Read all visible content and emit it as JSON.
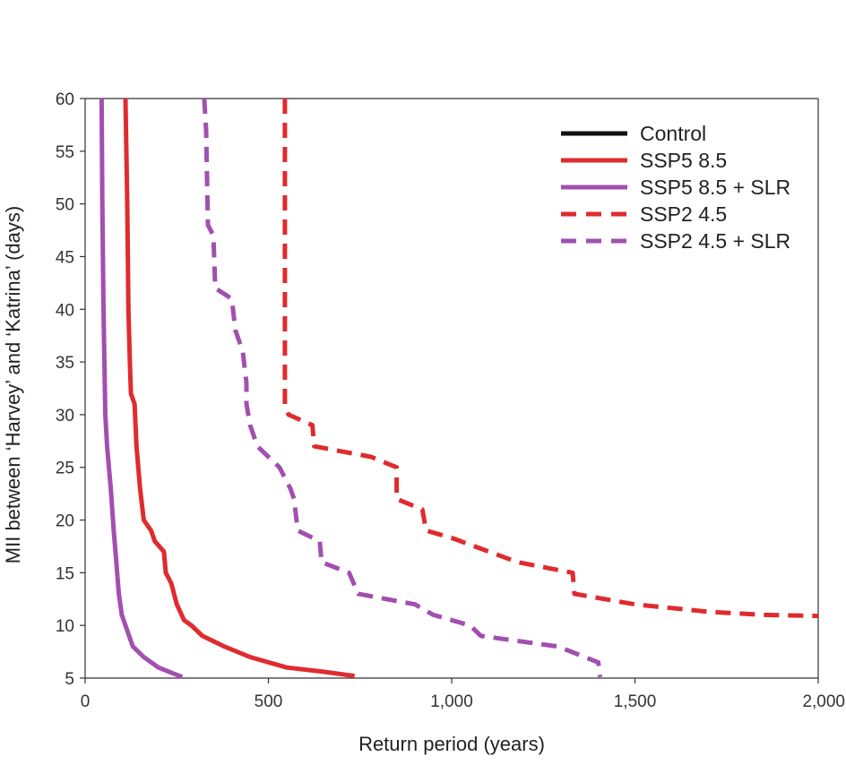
{
  "chart_data": {
    "type": "line",
    "xlabel": "Return period (years)",
    "ylabel": "MII between ‘Harvey’ and ‘Katrina’ (days)",
    "xlim": [
      0,
      2000
    ],
    "ylim": [
      5,
      60
    ],
    "xticks": [
      0,
      500,
      1000,
      1500,
      2000
    ],
    "xtick_labels": [
      "0",
      "500",
      "1,000",
      "1,500",
      "2,000"
    ],
    "yticks": [
      5,
      10,
      15,
      20,
      25,
      30,
      35,
      40,
      45,
      50,
      55,
      60
    ],
    "ytick_labels": [
      "5",
      "10",
      "15",
      "20",
      "25",
      "30",
      "35",
      "40",
      "45",
      "50",
      "55",
      "60"
    ],
    "grid": false,
    "legend_position": "top-right",
    "series": [
      {
        "name": "Control",
        "color": "#111111",
        "dash": "solid",
        "points": []
      },
      {
        "name": "SSP5 8.5",
        "color": "#e02b2e",
        "dash": "solid",
        "points": [
          [
            110,
            60
          ],
          [
            115,
            50
          ],
          [
            118,
            40
          ],
          [
            122,
            35
          ],
          [
            125,
            32
          ],
          [
            135,
            31
          ],
          [
            140,
            27
          ],
          [
            150,
            23
          ],
          [
            160,
            20
          ],
          [
            180,
            19
          ],
          [
            190,
            18
          ],
          [
            215,
            17
          ],
          [
            220,
            15
          ],
          [
            235,
            14
          ],
          [
            250,
            12
          ],
          [
            270,
            10.5
          ],
          [
            290,
            10
          ],
          [
            320,
            9
          ],
          [
            380,
            8
          ],
          [
            450,
            7
          ],
          [
            550,
            6
          ],
          [
            650,
            5.6
          ],
          [
            735,
            5.2
          ]
        ]
      },
      {
        "name": "SSP5 8.5 + SLR",
        "color": "#a24fb0",
        "dash": "solid",
        "points": [
          [
            45,
            60
          ],
          [
            47,
            50
          ],
          [
            50,
            40
          ],
          [
            55,
            30
          ],
          [
            60,
            27
          ],
          [
            70,
            23
          ],
          [
            78,
            19
          ],
          [
            85,
            16
          ],
          [
            92,
            13
          ],
          [
            100,
            11
          ],
          [
            110,
            10
          ],
          [
            130,
            8
          ],
          [
            160,
            7
          ],
          [
            200,
            6
          ],
          [
            265,
            5.1
          ]
        ]
      },
      {
        "name": "SSP2 4.5",
        "color": "#e02b2e",
        "dash": "dashed",
        "points": [
          [
            545,
            60
          ],
          [
            545,
            31
          ],
          [
            555,
            30
          ],
          [
            620,
            29
          ],
          [
            625,
            27
          ],
          [
            780,
            26
          ],
          [
            850,
            25
          ],
          [
            850,
            22
          ],
          [
            920,
            21
          ],
          [
            930,
            19
          ],
          [
            1000,
            18.3
          ],
          [
            1180,
            16
          ],
          [
            1330,
            15
          ],
          [
            1335,
            13
          ],
          [
            1500,
            12
          ],
          [
            1700,
            11.3
          ],
          [
            1850,
            11
          ],
          [
            2000,
            10.9
          ]
        ]
      },
      {
        "name": "SSP2 4.5 + SLR",
        "color": "#a24fb0",
        "dash": "dashed",
        "points": [
          [
            325,
            60
          ],
          [
            330,
            57
          ],
          [
            335,
            48
          ],
          [
            350,
            47
          ],
          [
            355,
            42
          ],
          [
            400,
            41
          ],
          [
            410,
            38
          ],
          [
            430,
            36
          ],
          [
            440,
            33
          ],
          [
            440,
            31
          ],
          [
            450,
            29
          ],
          [
            470,
            27
          ],
          [
            530,
            25
          ],
          [
            560,
            23
          ],
          [
            570,
            22
          ],
          [
            580,
            19
          ],
          [
            640,
            18
          ],
          [
            645,
            16
          ],
          [
            720,
            15
          ],
          [
            745,
            13
          ],
          [
            900,
            12
          ],
          [
            950,
            11
          ],
          [
            1050,
            10
          ],
          [
            1080,
            9
          ],
          [
            1290,
            8
          ],
          [
            1400,
            6.5
          ],
          [
            1405,
            5.1
          ]
        ]
      }
    ]
  }
}
